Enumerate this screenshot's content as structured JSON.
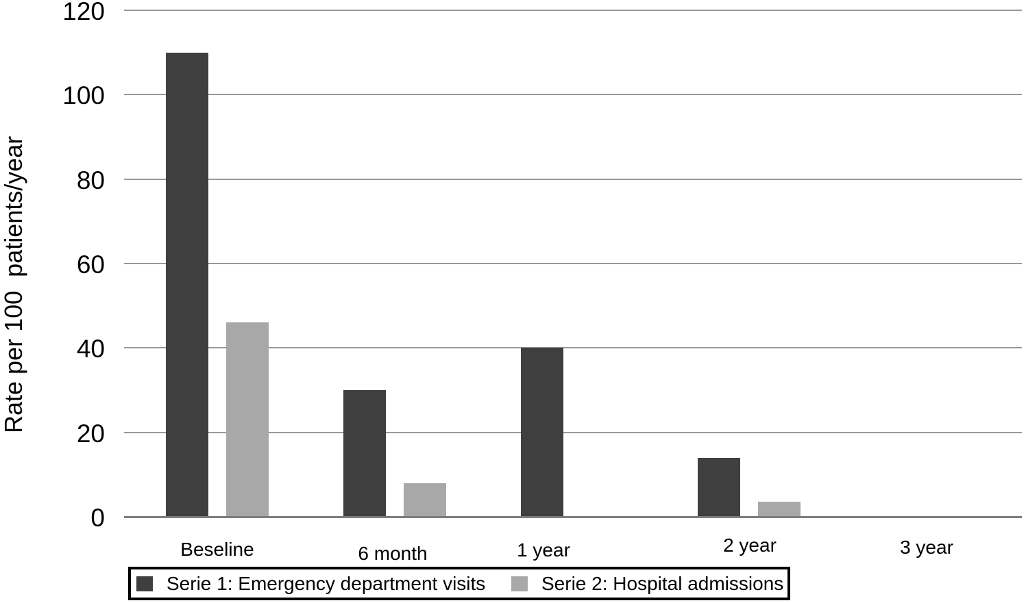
{
  "chart_data": {
    "type": "bar",
    "title": "",
    "categories": [
      "Beseline",
      "6 month",
      "1 year",
      "2 year",
      "3 year"
    ],
    "series": [
      {
        "name": "Serie 1: Emergency department visits",
        "color": "#3f3f3f",
        "values": [
          110,
          30,
          40,
          14,
          0
        ]
      },
      {
        "name": "Serie 2: Hospital admissions",
        "color": "#a8a8a8",
        "values": [
          46,
          8,
          0,
          3.5,
          0
        ]
      }
    ],
    "xlabel": "",
    "ylabel": "Rate per 100  patients/year",
    "ylim": [
      0,
      120
    ],
    "yticks": [
      0,
      20,
      40,
      60,
      80,
      100,
      120
    ],
    "grid": true,
    "legend_position": "bottom-boxed"
  },
  "colors": {
    "background": "#ffffff",
    "gridline": "#999999",
    "baseline": "#7d7d7d",
    "text": "#000000",
    "legend_border": "#000000"
  }
}
